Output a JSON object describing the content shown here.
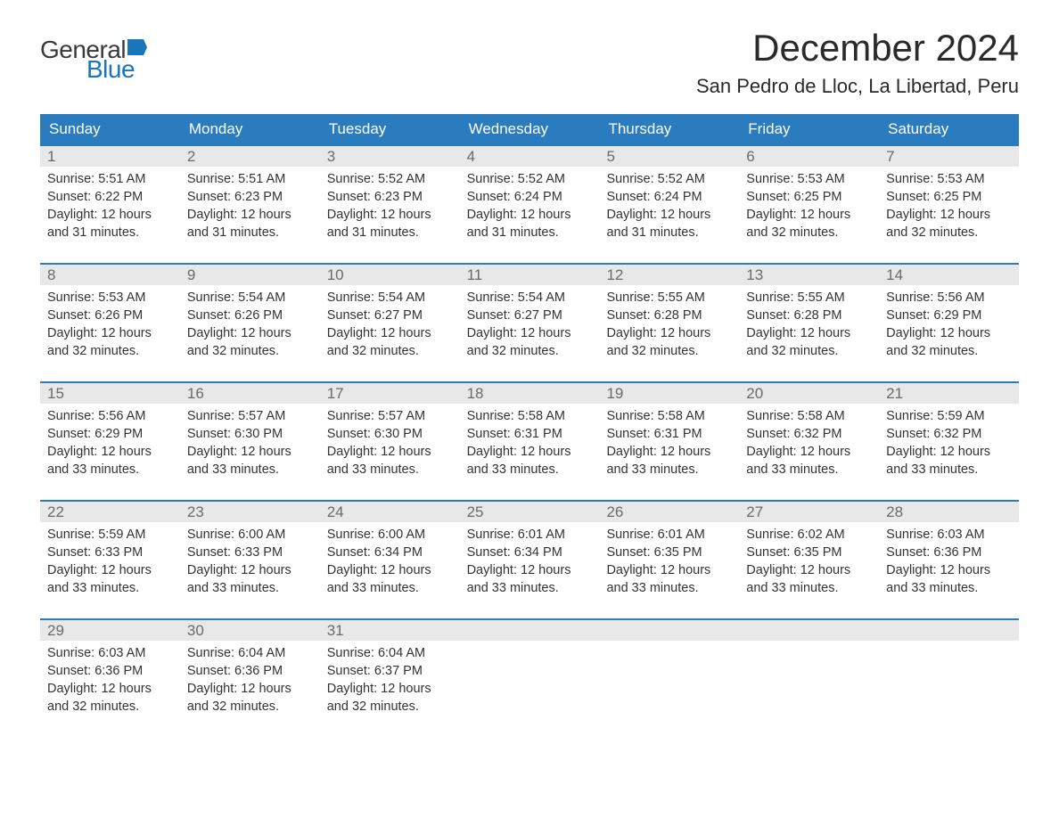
{
  "logo": {
    "text_general": "General",
    "text_blue": "Blue",
    "flag_color": "#1b75bb"
  },
  "header": {
    "month_title": "December 2024",
    "location": "San Pedro de Lloc, La Libertad, Peru"
  },
  "colors": {
    "header_bg": "#2b7bbf",
    "header_text": "#ffffff",
    "daynum_bg": "#e8e8e8",
    "daynum_text": "#6a6a6a",
    "body_text": "#333333",
    "week_border": "#2b7bbf",
    "logo_blue": "#1b75bb",
    "logo_dark": "#3a3a3a"
  },
  "weekdays": [
    "Sunday",
    "Monday",
    "Tuesday",
    "Wednesday",
    "Thursday",
    "Friday",
    "Saturday"
  ],
  "weeks": [
    [
      {
        "day": "1",
        "sunrise": "Sunrise: 5:51 AM",
        "sunset": "Sunset: 6:22 PM",
        "daylight1": "Daylight: 12 hours",
        "daylight2": "and 31 minutes."
      },
      {
        "day": "2",
        "sunrise": "Sunrise: 5:51 AM",
        "sunset": "Sunset: 6:23 PM",
        "daylight1": "Daylight: 12 hours",
        "daylight2": "and 31 minutes."
      },
      {
        "day": "3",
        "sunrise": "Sunrise: 5:52 AM",
        "sunset": "Sunset: 6:23 PM",
        "daylight1": "Daylight: 12 hours",
        "daylight2": "and 31 minutes."
      },
      {
        "day": "4",
        "sunrise": "Sunrise: 5:52 AM",
        "sunset": "Sunset: 6:24 PM",
        "daylight1": "Daylight: 12 hours",
        "daylight2": "and 31 minutes."
      },
      {
        "day": "5",
        "sunrise": "Sunrise: 5:52 AM",
        "sunset": "Sunset: 6:24 PM",
        "daylight1": "Daylight: 12 hours",
        "daylight2": "and 31 minutes."
      },
      {
        "day": "6",
        "sunrise": "Sunrise: 5:53 AM",
        "sunset": "Sunset: 6:25 PM",
        "daylight1": "Daylight: 12 hours",
        "daylight2": "and 32 minutes."
      },
      {
        "day": "7",
        "sunrise": "Sunrise: 5:53 AM",
        "sunset": "Sunset: 6:25 PM",
        "daylight1": "Daylight: 12 hours",
        "daylight2": "and 32 minutes."
      }
    ],
    [
      {
        "day": "8",
        "sunrise": "Sunrise: 5:53 AM",
        "sunset": "Sunset: 6:26 PM",
        "daylight1": "Daylight: 12 hours",
        "daylight2": "and 32 minutes."
      },
      {
        "day": "9",
        "sunrise": "Sunrise: 5:54 AM",
        "sunset": "Sunset: 6:26 PM",
        "daylight1": "Daylight: 12 hours",
        "daylight2": "and 32 minutes."
      },
      {
        "day": "10",
        "sunrise": "Sunrise: 5:54 AM",
        "sunset": "Sunset: 6:27 PM",
        "daylight1": "Daylight: 12 hours",
        "daylight2": "and 32 minutes."
      },
      {
        "day": "11",
        "sunrise": "Sunrise: 5:54 AM",
        "sunset": "Sunset: 6:27 PM",
        "daylight1": "Daylight: 12 hours",
        "daylight2": "and 32 minutes."
      },
      {
        "day": "12",
        "sunrise": "Sunrise: 5:55 AM",
        "sunset": "Sunset: 6:28 PM",
        "daylight1": "Daylight: 12 hours",
        "daylight2": "and 32 minutes."
      },
      {
        "day": "13",
        "sunrise": "Sunrise: 5:55 AM",
        "sunset": "Sunset: 6:28 PM",
        "daylight1": "Daylight: 12 hours",
        "daylight2": "and 32 minutes."
      },
      {
        "day": "14",
        "sunrise": "Sunrise: 5:56 AM",
        "sunset": "Sunset: 6:29 PM",
        "daylight1": "Daylight: 12 hours",
        "daylight2": "and 32 minutes."
      }
    ],
    [
      {
        "day": "15",
        "sunrise": "Sunrise: 5:56 AM",
        "sunset": "Sunset: 6:29 PM",
        "daylight1": "Daylight: 12 hours",
        "daylight2": "and 33 minutes."
      },
      {
        "day": "16",
        "sunrise": "Sunrise: 5:57 AM",
        "sunset": "Sunset: 6:30 PM",
        "daylight1": "Daylight: 12 hours",
        "daylight2": "and 33 minutes."
      },
      {
        "day": "17",
        "sunrise": "Sunrise: 5:57 AM",
        "sunset": "Sunset: 6:30 PM",
        "daylight1": "Daylight: 12 hours",
        "daylight2": "and 33 minutes."
      },
      {
        "day": "18",
        "sunrise": "Sunrise: 5:58 AM",
        "sunset": "Sunset: 6:31 PM",
        "daylight1": "Daylight: 12 hours",
        "daylight2": "and 33 minutes."
      },
      {
        "day": "19",
        "sunrise": "Sunrise: 5:58 AM",
        "sunset": "Sunset: 6:31 PM",
        "daylight1": "Daylight: 12 hours",
        "daylight2": "and 33 minutes."
      },
      {
        "day": "20",
        "sunrise": "Sunrise: 5:58 AM",
        "sunset": "Sunset: 6:32 PM",
        "daylight1": "Daylight: 12 hours",
        "daylight2": "and 33 minutes."
      },
      {
        "day": "21",
        "sunrise": "Sunrise: 5:59 AM",
        "sunset": "Sunset: 6:32 PM",
        "daylight1": "Daylight: 12 hours",
        "daylight2": "and 33 minutes."
      }
    ],
    [
      {
        "day": "22",
        "sunrise": "Sunrise: 5:59 AM",
        "sunset": "Sunset: 6:33 PM",
        "daylight1": "Daylight: 12 hours",
        "daylight2": "and 33 minutes."
      },
      {
        "day": "23",
        "sunrise": "Sunrise: 6:00 AM",
        "sunset": "Sunset: 6:33 PM",
        "daylight1": "Daylight: 12 hours",
        "daylight2": "and 33 minutes."
      },
      {
        "day": "24",
        "sunrise": "Sunrise: 6:00 AM",
        "sunset": "Sunset: 6:34 PM",
        "daylight1": "Daylight: 12 hours",
        "daylight2": "and 33 minutes."
      },
      {
        "day": "25",
        "sunrise": "Sunrise: 6:01 AM",
        "sunset": "Sunset: 6:34 PM",
        "daylight1": "Daylight: 12 hours",
        "daylight2": "and 33 minutes."
      },
      {
        "day": "26",
        "sunrise": "Sunrise: 6:01 AM",
        "sunset": "Sunset: 6:35 PM",
        "daylight1": "Daylight: 12 hours",
        "daylight2": "and 33 minutes."
      },
      {
        "day": "27",
        "sunrise": "Sunrise: 6:02 AM",
        "sunset": "Sunset: 6:35 PM",
        "daylight1": "Daylight: 12 hours",
        "daylight2": "and 33 minutes."
      },
      {
        "day": "28",
        "sunrise": "Sunrise: 6:03 AM",
        "sunset": "Sunset: 6:36 PM",
        "daylight1": "Daylight: 12 hours",
        "daylight2": "and 33 minutes."
      }
    ],
    [
      {
        "day": "29",
        "sunrise": "Sunrise: 6:03 AM",
        "sunset": "Sunset: 6:36 PM",
        "daylight1": "Daylight: 12 hours",
        "daylight2": "and 32 minutes."
      },
      {
        "day": "30",
        "sunrise": "Sunrise: 6:04 AM",
        "sunset": "Sunset: 6:36 PM",
        "daylight1": "Daylight: 12 hours",
        "daylight2": "and 32 minutes."
      },
      {
        "day": "31",
        "sunrise": "Sunrise: 6:04 AM",
        "sunset": "Sunset: 6:37 PM",
        "daylight1": "Daylight: 12 hours",
        "daylight2": "and 32 minutes."
      },
      {
        "empty": true
      },
      {
        "empty": true
      },
      {
        "empty": true
      },
      {
        "empty": true
      }
    ]
  ]
}
